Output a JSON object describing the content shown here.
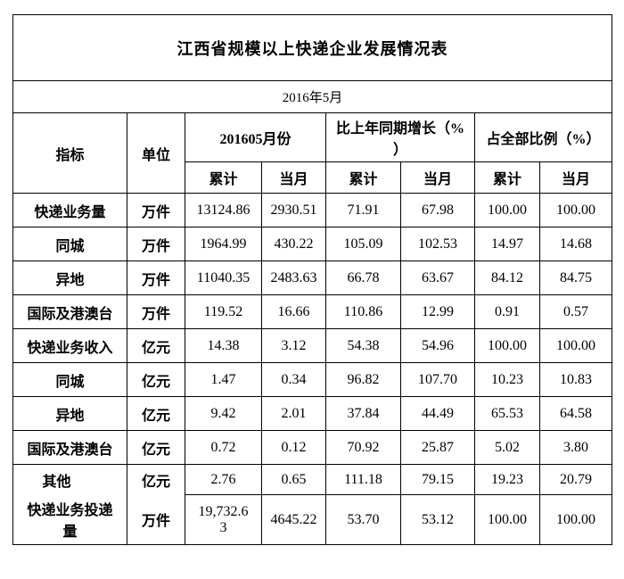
{
  "table": {
    "title": "江西省规模以上快递企业发展情况表",
    "period": "2016年5月",
    "header": {
      "indicator": "指标",
      "unit": "单位",
      "groups": [
        {
          "label": "201605月份"
        },
        {
          "label": "比上年同期增长（%）"
        },
        {
          "label": "占全部比例（%）"
        }
      ],
      "sub_labels": [
        "累计",
        "当月",
        "累计",
        "当月",
        "累计",
        "当月"
      ]
    },
    "rows": [
      {
        "label": "快递业务量",
        "unit": "万件",
        "values": [
          "13124.86",
          "2930.51",
          "71.91",
          "67.98",
          "100.00",
          "100.00"
        ]
      },
      {
        "label": "同城",
        "unit": "万件",
        "values": [
          "1964.99",
          "430.22",
          "105.09",
          "102.53",
          "14.97",
          "14.68"
        ]
      },
      {
        "label": "异地",
        "unit": "万件",
        "values": [
          "11040.35",
          "2483.63",
          "66.78",
          "63.67",
          "84.12",
          "84.75"
        ]
      },
      {
        "label": "国际及港澳台",
        "unit": "万件",
        "values": [
          "119.52",
          "16.66",
          "110.86",
          "12.99",
          "0.91",
          "0.57"
        ]
      },
      {
        "label": "快递业务收入",
        "unit": "亿元",
        "values": [
          "14.38",
          "3.12",
          "54.38",
          "54.96",
          "100.00",
          "100.00"
        ]
      },
      {
        "label": "同城",
        "unit": "亿元",
        "values": [
          "1.47",
          "0.34",
          "96.82",
          "107.70",
          "10.23",
          "10.83"
        ]
      },
      {
        "label": "异地",
        "unit": "亿元",
        "values": [
          "9.42",
          "2.01",
          "37.84",
          "44.49",
          "65.53",
          "64.58"
        ]
      },
      {
        "label": "国际及港澳台",
        "unit": "亿元",
        "values": [
          "0.72",
          "0.12",
          "70.92",
          "25.87",
          "5.02",
          "3.80"
        ]
      },
      {
        "label": "其他",
        "unit": "亿元",
        "values": [
          "2.76",
          "0.65",
          "111.18",
          "79.15",
          "19.23",
          "20.79"
        ]
      },
      {
        "label": "快递业务投递量",
        "unit": "万件",
        "values": [
          "19,732.63",
          "4645.22",
          "53.70",
          "53.12",
          "100.00",
          "100.00"
        ]
      }
    ]
  }
}
